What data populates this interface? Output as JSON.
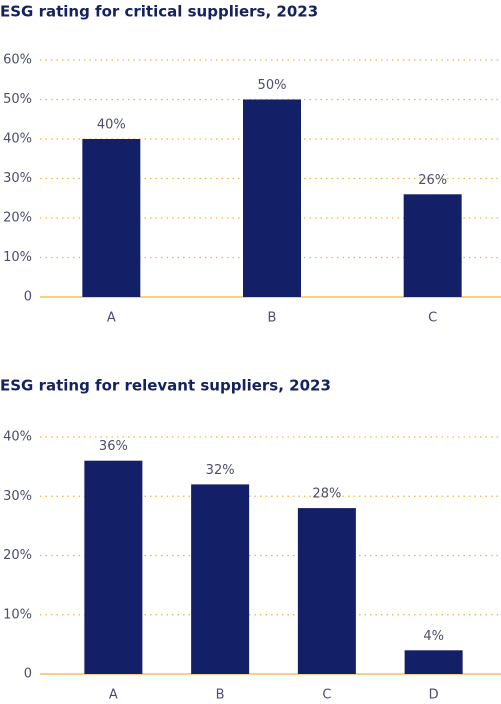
{
  "chart_data": [
    {
      "type": "bar",
      "title": "ESG rating for critical suppliers, 2023",
      "categories": [
        "A",
        "B",
        "C"
      ],
      "values": [
        40,
        50,
        26
      ],
      "value_labels": [
        "40%",
        "50%",
        "26%"
      ],
      "color": "#131f66",
      "ylim": [
        0,
        60
      ],
      "yticks": [
        0,
        {
          "value": 10,
          "label": "10%"
        },
        {
          "value": 20,
          "label": "20%"
        },
        {
          "value": 30,
          "label": "30%"
        },
        {
          "value": 40,
          "label": "40%"
        },
        {
          "value": 50,
          "label": "50%"
        },
        {
          "value": 60,
          "label": "60%"
        }
      ],
      "grid": true
    },
    {
      "type": "bar",
      "title": "ESG rating for relevant suppliers, 2023",
      "categories": [
        "A",
        "B",
        "C",
        "D"
      ],
      "values": [
        36,
        32,
        28,
        4
      ],
      "value_labels": [
        "36%",
        "32%",
        "28%",
        "4%"
      ],
      "color": "#131f66",
      "ylim": [
        0,
        40
      ],
      "yticks": [
        0,
        {
          "value": 10,
          "label": "10%"
        },
        {
          "value": 20,
          "label": "20%"
        },
        {
          "value": 30,
          "label": "30%"
        },
        {
          "value": 40,
          "label": "40%"
        }
      ],
      "grid": true
    }
  ]
}
